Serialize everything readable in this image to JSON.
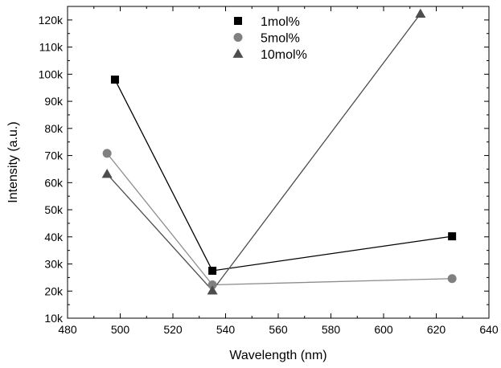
{
  "chart_data": {
    "type": "line",
    "xlabel": "Wavelength (nm)",
    "ylabel": "Intensity (a.u.)",
    "xlim": [
      480,
      640
    ],
    "ylim": [
      10000,
      125000
    ],
    "x_ticks": [
      480,
      500,
      520,
      540,
      560,
      580,
      600,
      620,
      640
    ],
    "x_tick_labels": [
      "480",
      "500",
      "520",
      "540",
      "560",
      "580",
      "600",
      "620",
      "640"
    ],
    "y_ticks": [
      10000,
      20000,
      30000,
      40000,
      50000,
      60000,
      70000,
      80000,
      90000,
      100000,
      110000,
      120000
    ],
    "y_tick_labels": [
      "10k",
      "20k",
      "30k",
      "40k",
      "50k",
      "60k",
      "70k",
      "80k",
      "90k",
      "100k",
      "110k",
      "120k"
    ],
    "grid": false,
    "legend_position": "top-center",
    "series": [
      {
        "name": "1mol%",
        "marker": "square",
        "color": "#000000",
        "line_color": "#000000",
        "points": [
          [
            498,
            98000
          ],
          [
            535,
            27500
          ],
          [
            626,
            40200
          ]
        ]
      },
      {
        "name": "5mol%",
        "marker": "circle",
        "color": "#808080",
        "line_color": "#8c8c8c",
        "points": [
          [
            495,
            70800
          ],
          [
            535,
            22300
          ],
          [
            626,
            24600
          ]
        ]
      },
      {
        "name": "10mol%",
        "marker": "triangle",
        "color": "#4d4d4d",
        "line_color": "#4d4d4d",
        "points": [
          [
            495,
            63200
          ],
          [
            535,
            20200
          ],
          [
            614,
            122300
          ]
        ]
      }
    ]
  }
}
